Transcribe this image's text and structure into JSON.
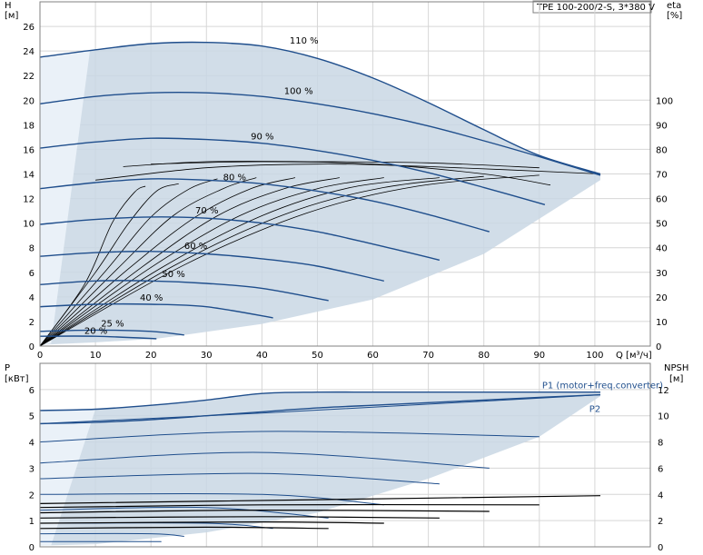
{
  "chart_data": [
    {
      "type": "line",
      "title": "TPE 100-200/2-S, 3*380 V",
      "ylabel": "H",
      "ylabel_unit": "[м]",
      "y2label": "eta",
      "y2label_unit": "[%]",
      "xlabel": "Q [м³/ч]",
      "xlim": [
        0,
        110
      ],
      "ylim": [
        0,
        28
      ],
      "y2lim": [
        0,
        140
      ],
      "x_ticks": [
        0,
        10,
        20,
        30,
        40,
        50,
        60,
        70,
        80,
        90,
        100
      ],
      "y_ticks": [
        0,
        2,
        4,
        6,
        8,
        10,
        12,
        14,
        16,
        18,
        20,
        22,
        24,
        26
      ],
      "y2_ticks": [
        0,
        10,
        20,
        30,
        40,
        50,
        60,
        70,
        80,
        90,
        100
      ],
      "grid": true,
      "series": [
        {
          "name": "110 %",
          "x": [
            0,
            10,
            20,
            30,
            40,
            50,
            60,
            70,
            80,
            90,
            101
          ],
          "values": [
            23.5,
            24.1,
            24.6,
            24.7,
            24.4,
            23.4,
            21.8,
            19.8,
            17.6,
            15.5,
            14.0
          ]
        },
        {
          "name": "100 %",
          "x": [
            0,
            10,
            20,
            30,
            40,
            50,
            60,
            70,
            80,
            90,
            101
          ],
          "values": [
            19.7,
            20.3,
            20.6,
            20.6,
            20.3,
            19.7,
            18.9,
            17.9,
            16.7,
            15.4,
            13.9
          ]
        },
        {
          "name": "90 %",
          "x": [
            0,
            10,
            20,
            30,
            40,
            50,
            60,
            70,
            80,
            91
          ],
          "values": [
            16.1,
            16.6,
            16.9,
            16.8,
            16.5,
            15.9,
            15.1,
            14.1,
            12.9,
            11.5
          ]
        },
        {
          "name": "80 %",
          "x": [
            0,
            10,
            20,
            30,
            40,
            50,
            60,
            70,
            81
          ],
          "values": [
            12.8,
            13.3,
            13.6,
            13.5,
            13.2,
            12.6,
            11.8,
            10.7,
            9.3
          ]
        },
        {
          "name": "70 %",
          "x": [
            0,
            10,
            20,
            30,
            40,
            50,
            60,
            72
          ],
          "values": [
            9.9,
            10.3,
            10.5,
            10.4,
            10.0,
            9.3,
            8.3,
            7.0
          ]
        },
        {
          "name": "60 %",
          "x": [
            0,
            10,
            20,
            30,
            40,
            50,
            62
          ],
          "values": [
            7.3,
            7.6,
            7.7,
            7.5,
            7.1,
            6.5,
            5.3
          ]
        },
        {
          "name": "50 %",
          "x": [
            0,
            10,
            20,
            30,
            40,
            52
          ],
          "values": [
            5.0,
            5.3,
            5.3,
            5.1,
            4.7,
            3.7
          ]
        },
        {
          "name": "40 %",
          "x": [
            0,
            10,
            20,
            30,
            42
          ],
          "values": [
            3.2,
            3.4,
            3.4,
            3.2,
            2.3
          ]
        },
        {
          "name": "25 %",
          "x": [
            0,
            10,
            20,
            26
          ],
          "values": [
            1.2,
            1.3,
            1.2,
            0.9
          ]
        },
        {
          "name": "20 %",
          "x": [
            0,
            10,
            21
          ],
          "values": [
            0.8,
            0.8,
            0.6
          ]
        }
      ],
      "speed_labels": [
        "110 %",
        "100 %",
        "90 %",
        "80 %",
        "70 %",
        "60 %",
        "50 %",
        "40 %",
        "25 %",
        "20 %"
      ]
    },
    {
      "type": "line",
      "ylabel": "P",
      "ylabel_unit": "[кВт]",
      "y2label": "NPSH",
      "y2label_unit": "[м]",
      "xlim": [
        0,
        110
      ],
      "ylim": [
        0,
        7
      ],
      "y2lim": [
        0,
        14
      ],
      "y_ticks": [
        0,
        1,
        2,
        3,
        4,
        5,
        6
      ],
      "y2_ticks": [
        0,
        2,
        4,
        6,
        8,
        10,
        12
      ],
      "grid": true,
      "series": [
        {
          "name": "P1 (motor+freq.converter)",
          "x": [
            0,
            10,
            20,
            30,
            40,
            50,
            60,
            70,
            80,
            90,
            101
          ],
          "values": [
            5.2,
            5.25,
            5.4,
            5.6,
            5.85,
            5.9,
            5.9,
            5.9,
            5.9,
            5.9,
            5.9
          ]
        },
        {
          "name": "P2",
          "x": [
            0,
            10,
            20,
            30,
            40,
            50,
            60,
            70,
            80,
            90,
            101
          ],
          "values": [
            4.7,
            4.75,
            4.85,
            5.0,
            5.15,
            5.3,
            5.4,
            5.5,
            5.6,
            5.7,
            5.8
          ]
        }
      ],
      "npsh": {
        "x": [
          0,
          20,
          40,
          60,
          80,
          101
        ],
        "values": [
          3.3,
          3.4,
          3.5,
          3.6,
          3.75,
          3.9
        ]
      },
      "series_labels": [
        "P1 (motor+freq.converter)",
        "P2"
      ]
    }
  ]
}
